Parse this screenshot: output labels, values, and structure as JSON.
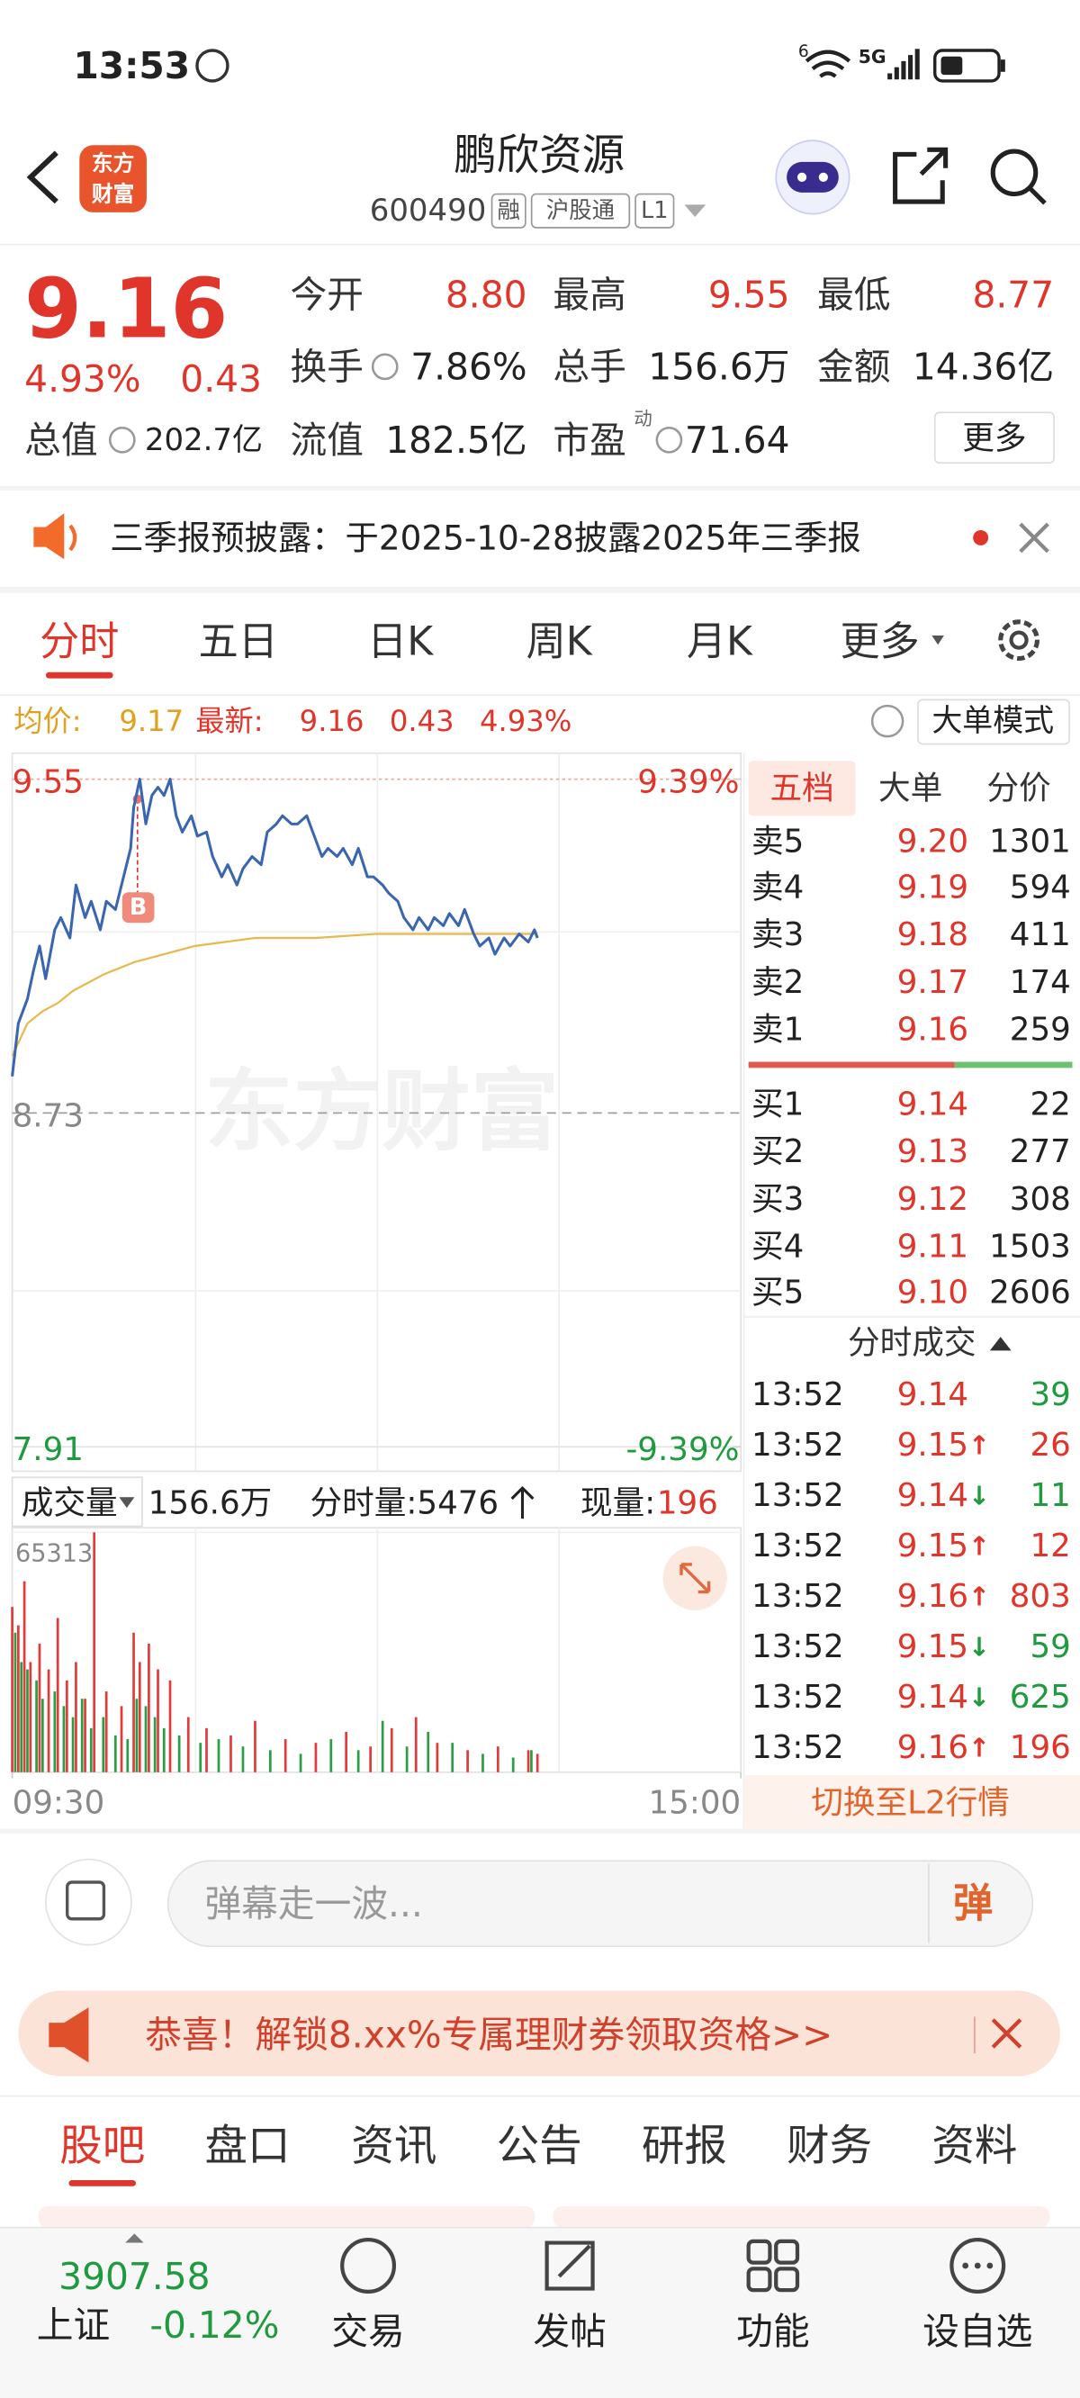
{
  "status": {
    "time": "13:53",
    "wifi_badge": "6",
    "network": "5G"
  },
  "header": {
    "logo": [
      "东方",
      "财富"
    ],
    "title": "鹏欣资源",
    "code": "600490",
    "tags": [
      "融",
      "沪股通",
      "L1"
    ]
  },
  "quote": {
    "price": "9.16",
    "change_pct": "4.93%",
    "change": "0.43",
    "fields": [
      [
        "今开",
        "8.80"
      ],
      [
        "最高",
        "9.55"
      ],
      [
        "最低",
        "8.77"
      ],
      [
        "换手",
        "7.86%"
      ],
      [
        "总手",
        "156.6万"
      ],
      [
        "金额",
        "14.36亿"
      ],
      [
        "总值",
        "202.7亿"
      ],
      [
        "流值",
        "182.5亿"
      ],
      [
        "市盈",
        "71.64"
      ]
    ],
    "pe_note": "动",
    "more": "更多"
  },
  "notice": "三季报预披露：于2025-10-28披露2025年三季报",
  "tabs": [
    "分时",
    "五日",
    "日K",
    "周K",
    "月K",
    "更多"
  ],
  "info": {
    "avg_label": "均价:",
    "avg": "9.17",
    "latest_label": "最新:",
    "latest": "9.16",
    "change": "0.43",
    "change_pct": "4.93%",
    "mode_button": "大单模式"
  },
  "chart_data": [
    {
      "type": "line",
      "xlim": [
        0,
        240
      ],
      "ylim": [
        7.91,
        9.55
      ],
      "yticks": [
        {
          "value": 9.55,
          "label": "9.55"
        },
        {
          "value": 8.73,
          "label": "8.73"
        },
        {
          "value": 7.91,
          "label": "7.91"
        }
      ],
      "y2lim": [
        -9.39,
        9.39
      ],
      "y2ticks": [
        {
          "value": 9.39,
          "label": "9.39%"
        },
        {
          "value": -9.39,
          "label": "-9.39%"
        }
      ],
      "annotation": "B",
      "series": [
        {
          "color": "#3a66b0",
          "x": [
            0,
            2,
            5,
            7,
            9,
            11,
            14,
            16,
            19,
            21,
            24,
            26,
            29,
            31,
            34,
            36,
            39,
            40,
            42,
            44,
            46,
            48,
            50,
            52,
            54,
            56,
            59,
            61,
            64,
            66,
            69,
            71,
            74,
            76,
            79,
            82,
            84,
            87,
            89,
            92,
            94,
            97,
            99,
            102,
            104,
            107,
            109,
            112,
            114,
            117,
            119,
            122,
            124,
            127,
            129,
            132,
            134,
            137,
            139,
            142,
            144,
            147,
            149,
            152,
            154,
            157,
            159,
            162,
            164,
            167,
            170,
            172,
            173
          ],
          "values": [
            8.82,
            8.95,
            9.01,
            9.08,
            9.14,
            9.06,
            9.18,
            9.21,
            9.16,
            9.29,
            9.21,
            9.25,
            9.18,
            9.25,
            9.23,
            9.29,
            9.38,
            9.48,
            9.55,
            9.44,
            9.51,
            9.53,
            9.51,
            9.55,
            9.46,
            9.42,
            9.46,
            9.41,
            9.42,
            9.36,
            9.31,
            9.34,
            9.29,
            9.33,
            9.36,
            9.34,
            9.42,
            9.44,
            9.46,
            9.44,
            9.44,
            9.46,
            9.42,
            9.36,
            9.38,
            9.36,
            9.38,
            9.34,
            9.38,
            9.31,
            9.31,
            9.29,
            9.27,
            9.25,
            9.21,
            9.18,
            9.21,
            9.18,
            9.21,
            9.19,
            9.22,
            9.19,
            9.23,
            9.17,
            9.14,
            9.16,
            9.12,
            9.16,
            9.14,
            9.17,
            9.15,
            9.18,
            9.16
          ]
        },
        {
          "color": "#e8b84a",
          "x": [
            0,
            5,
            10,
            15,
            20,
            25,
            30,
            40,
            50,
            60,
            70,
            80,
            100,
            120,
            140,
            173
          ],
          "values": [
            8.87,
            8.95,
            8.98,
            9.0,
            9.03,
            9.05,
            9.07,
            9.1,
            9.12,
            9.14,
            9.15,
            9.16,
            9.16,
            9.17,
            9.17,
            9.17
          ]
        }
      ]
    },
    {
      "type": "bar",
      "xlim": [
        0,
        240
      ],
      "xticks": [
        {
          "value": 0,
          "label": "09:30"
        },
        {
          "value": 240,
          "label": "15:00"
        }
      ],
      "ylim": [
        0,
        65313
      ],
      "yticks": [
        65313
      ],
      "series": [
        {
          "color": "#e03c3c",
          "x": [
            0,
            2,
            4,
            6,
            9,
            12,
            15,
            18,
            21,
            24,
            27,
            31,
            36,
            40,
            42,
            45,
            48,
            52,
            58,
            64,
            72,
            80,
            90,
            100,
            110,
            118,
            125,
            133,
            140,
            150,
            160,
            170,
            173
          ],
          "values": [
            45000,
            40000,
            52000,
            30000,
            35000,
            28000,
            42000,
            25000,
            30000,
            20000,
            65313,
            22000,
            18000,
            38000,
            30000,
            35000,
            28000,
            25000,
            15000,
            12000,
            10000,
            14000,
            9000,
            8000,
            11000,
            7000,
            12000,
            15000,
            8000,
            6000,
            7000,
            6000,
            5000
          ]
        },
        {
          "color": "#2a9d45",
          "x": [
            1,
            3,
            5,
            8,
            10,
            14,
            17,
            20,
            23,
            26,
            30,
            34,
            38,
            41,
            44,
            47,
            50,
            55,
            62,
            68,
            76,
            85,
            95,
            105,
            114,
            122,
            130,
            137,
            145,
            155,
            165,
            171
          ],
          "values": [
            38000,
            30000,
            28000,
            25000,
            20000,
            22000,
            18000,
            15000,
            20000,
            12000,
            15000,
            10000,
            9000,
            20000,
            18000,
            15000,
            12000,
            10000,
            8000,
            9000,
            7000,
            6000,
            5000,
            9000,
            6000,
            14000,
            7000,
            11000,
            8000,
            5000,
            4000,
            6000
          ]
        }
      ]
    }
  ],
  "volume_header": {
    "label": "成交量",
    "total": "156.6万",
    "tick_volume": "分时量:5476",
    "current_label": "现量:",
    "current": "196"
  },
  "watermark": "东方财富",
  "order_book": {
    "tabs": [
      "五档",
      "大单",
      "分价"
    ],
    "rows": [
      [
        "卖5",
        "9.20",
        "1301"
      ],
      [
        "卖4",
        "9.19",
        "594"
      ],
      [
        "卖3",
        "9.18",
        "411"
      ],
      [
        "卖2",
        "9.17",
        "174"
      ],
      [
        "卖1",
        "9.16",
        "259"
      ],
      [
        "买1",
        "9.14",
        "22"
      ],
      [
        "买2",
        "9.13",
        "277"
      ],
      [
        "买3",
        "9.12",
        "308"
      ],
      [
        "买4",
        "9.11",
        "1503"
      ],
      [
        "买5",
        "9.10",
        "2606"
      ]
    ]
  },
  "trades": {
    "title": "分时成交",
    "rows": [
      {
        "time": "13:52",
        "price": "9.14",
        "volume": "39"
      },
      {
        "time": "13:52",
        "price": "9.15",
        "dir": "↑",
        "volume": "26"
      },
      {
        "time": "13:52",
        "price": "9.14",
        "dir": "↓",
        "volume": "11"
      },
      {
        "time": "13:52",
        "price": "9.15",
        "dir": "↑",
        "volume": "12"
      },
      {
        "time": "13:52",
        "price": "9.16",
        "dir": "↑",
        "volume": "803"
      },
      {
        "time": "13:52",
        "price": "9.15",
        "dir": "↓",
        "volume": "59"
      },
      {
        "time": "13:52",
        "price": "9.14",
        "dir": "↓",
        "volume": "625"
      },
      {
        "time": "13:52",
        "price": "9.16",
        "dir": "↑",
        "volume": "196"
      }
    ]
  },
  "l2_button": "切换至L2行情",
  "danmaku": {
    "placeholder": "弹幕走一波...",
    "button": "弹"
  },
  "promo": "恭喜！解锁8.xx%专属理财券领取资格>>",
  "bottom_tabs": [
    "股吧",
    "盘口",
    "资讯",
    "公告",
    "研报",
    "财务",
    "资料"
  ],
  "nav": {
    "index_value": "3907.58",
    "index_name": "上证",
    "index_change": "-0.12%",
    "items": [
      "交易",
      "发帖",
      "功能",
      "设自选"
    ]
  }
}
